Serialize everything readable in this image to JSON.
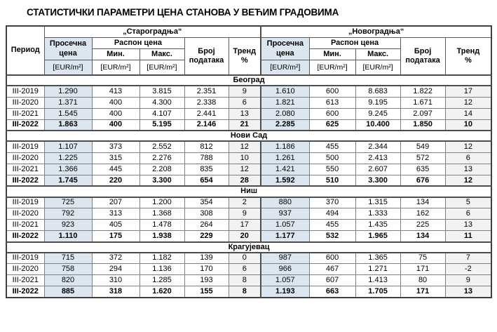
{
  "page_title": "СТАТИСТИЧКИ ПАРАМЕТРИ ЦЕНА СТАНОВА У ВЕЋИМ ГРАДОВИМА",
  "colors": {
    "avg_price_bg": "#dce6f1",
    "trend_bg": "#f2f2f2",
    "border_inner": "#7f7f7f",
    "border_outer": "#404040"
  },
  "table": {
    "header": {
      "period": "Период",
      "group_staro": "„Староградња“",
      "group_novo": "„Новоградња“",
      "avg_price": "Просечна цена",
      "price_range": "Распон цена",
      "min": "Мин.",
      "max": "Макс.",
      "unit": "[EUR/m²]",
      "data_count": "Број података",
      "trend_label": "Тренд",
      "trend_pct": "%"
    },
    "sections": [
      {
        "city": "Београд",
        "rows": [
          {
            "period": "III-2019",
            "values": [
              "1.290",
              "413",
              "3.815",
              "2.351",
              "9",
              "1.610",
              "600",
              "8.683",
              "1.822",
              "17"
            ],
            "bold": false
          },
          {
            "period": "III-2020",
            "values": [
              "1.371",
              "400",
              "4.300",
              "2.338",
              "6",
              "1.821",
              "613",
              "9.195",
              "1.671",
              "12"
            ],
            "bold": false
          },
          {
            "period": "III-2021",
            "values": [
              "1.545",
              "400",
              "4.107",
              "2.441",
              "13",
              "2.080",
              "600",
              "9.245",
              "2.097",
              "14"
            ],
            "bold": false
          },
          {
            "period": "III-2022",
            "values": [
              "1.863",
              "400",
              "5.195",
              "2.146",
              "21",
              "2.285",
              "625",
              "10.400",
              "1.850",
              "10"
            ],
            "bold": true
          }
        ]
      },
      {
        "city": "Нови Сад",
        "rows": [
          {
            "period": "III-2019",
            "values": [
              "1.107",
              "373",
              "2.552",
              "812",
              "12",
              "1.186",
              "455",
              "2.344",
              "549",
              "12"
            ],
            "bold": false
          },
          {
            "period": "III-2020",
            "values": [
              "1.225",
              "315",
              "2.276",
              "788",
              "10",
              "1.261",
              "500",
              "2.413",
              "572",
              "6"
            ],
            "bold": false
          },
          {
            "period": "III-2021",
            "values": [
              "1.366",
              "445",
              "2.208",
              "835",
              "12",
              "1.421",
              "550",
              "2.607",
              "635",
              "13"
            ],
            "bold": false
          },
          {
            "period": "III-2022",
            "values": [
              "1.745",
              "220",
              "3.300",
              "654",
              "28",
              "1.592",
              "510",
              "3.300",
              "676",
              "12"
            ],
            "bold": true
          }
        ]
      },
      {
        "city": "Ниш",
        "rows": [
          {
            "period": "III-2019",
            "values": [
              "725",
              "207",
              "1.200",
              "354",
              "2",
              "880",
              "370",
              "1.315",
              "134",
              "5"
            ],
            "bold": false
          },
          {
            "period": "III-2020",
            "values": [
              "792",
              "313",
              "1.368",
              "308",
              "9",
              "937",
              "494",
              "1.333",
              "162",
              "6"
            ],
            "bold": false
          },
          {
            "period": "III-2021",
            "values": [
              "923",
              "405",
              "1.478",
              "264",
              "17",
              "1.057",
              "455",
              "1.435",
              "225",
              "13"
            ],
            "bold": false
          },
          {
            "period": "III-2022",
            "values": [
              "1.110",
              "175",
              "1.938",
              "229",
              "20",
              "1.177",
              "532",
              "1.965",
              "134",
              "11"
            ],
            "bold": true
          }
        ]
      },
      {
        "city": "Крагујевац",
        "rows": [
          {
            "period": "III-2019",
            "values": [
              "715",
              "372",
              "1.182",
              "139",
              "0",
              "987",
              "600",
              "1.365",
              "75",
              "7"
            ],
            "bold": false
          },
          {
            "period": "III-2020",
            "values": [
              "758",
              "294",
              "1.136",
              "170",
              "6",
              "966",
              "467",
              "1.271",
              "171",
              "-2"
            ],
            "bold": false
          },
          {
            "period": "III-2021",
            "values": [
              "820",
              "310",
              "1.285",
              "193",
              "8",
              "1.057",
              "607",
              "1.413",
              "80",
              "9"
            ],
            "bold": false
          },
          {
            "period": "III-2022",
            "values": [
              "885",
              "318",
              "1.620",
              "155",
              "8",
              "1.193",
              "663",
              "1.705",
              "171",
              "13"
            ],
            "bold": true
          }
        ]
      }
    ]
  }
}
